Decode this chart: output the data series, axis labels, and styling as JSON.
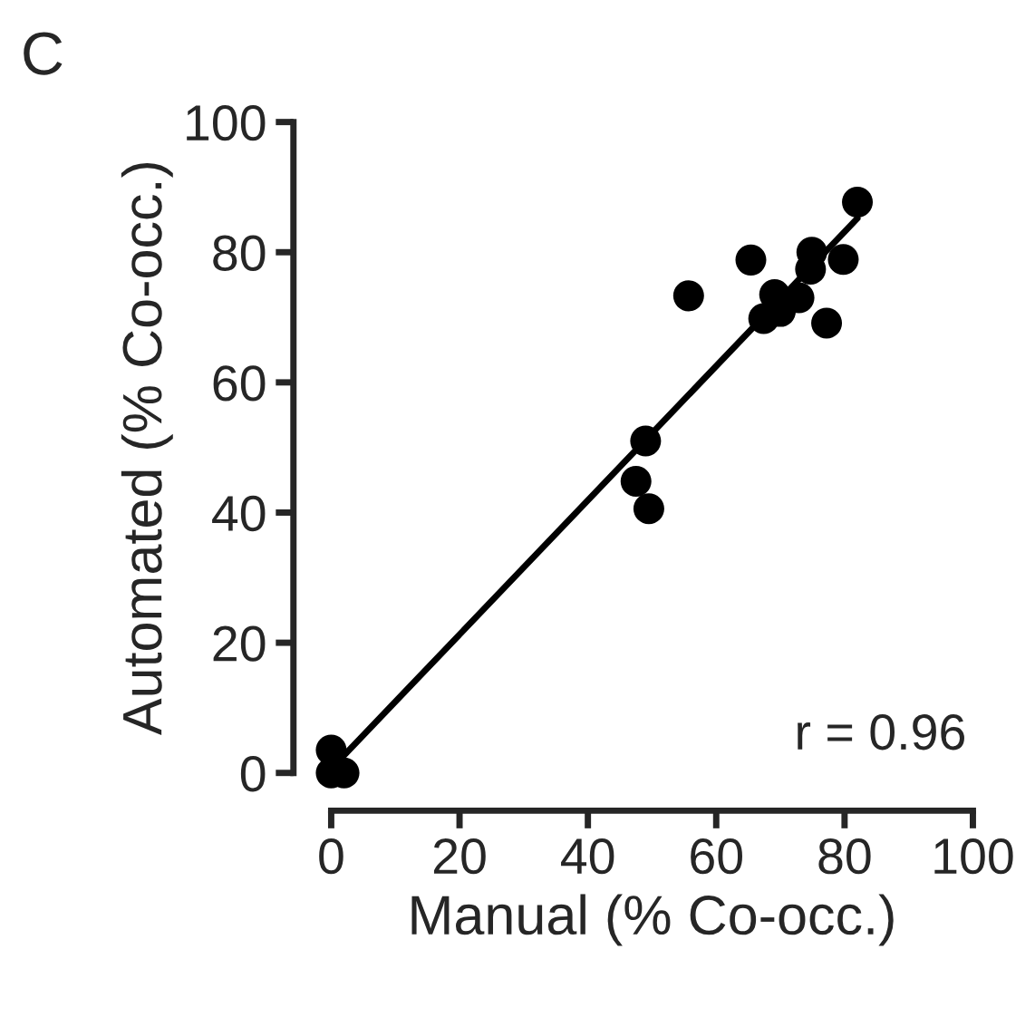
{
  "chart_data": {
    "type": "scatter",
    "title": "C",
    "xlabel": "Manual (% Co-occ.)",
    "ylabel": "Automated (% Co-occ.)",
    "xlim": [
      0,
      100
    ],
    "ylim": [
      0,
      100
    ],
    "xticks": [
      0,
      20,
      40,
      60,
      80,
      100
    ],
    "yticks": [
      0,
      20,
      40,
      60,
      80,
      100
    ],
    "grid": false,
    "legend": false,
    "series": [
      {
        "color": "#000000",
        "marker": "circle",
        "x": [
          82,
          65.4,
          74.9,
          79.8,
          74.7,
          55.7,
          69.1,
          72.9,
          70,
          67.4,
          77.2,
          47.5,
          49.5,
          49,
          0,
          0,
          2
        ],
        "values": [
          87.7,
          78.8,
          80,
          78.9,
          77.4,
          73.3,
          73.5,
          73,
          70.9,
          69.8,
          69.1,
          44.8,
          40.6,
          51,
          3.5,
          0,
          0
        ]
      },
      {
        "type": "line",
        "color": "#000000",
        "line_style": "solid",
        "x": [
          2,
          82
        ],
        "values": [
          2.7,
          85.2
        ]
      }
    ],
    "annotations": [
      "r = 0.96"
    ]
  }
}
